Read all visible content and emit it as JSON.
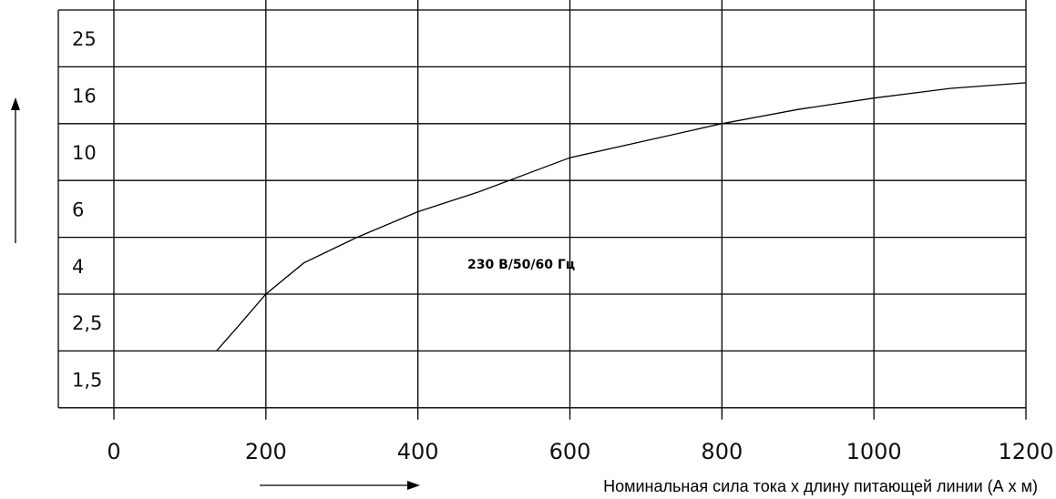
{
  "chart_data": {
    "type": "line",
    "title": "",
    "xlabel": "Номинальная сила тока x длину питающей линии (А x м)",
    "ylabel": "",
    "xlim": [
      0,
      1200
    ],
    "x_ticks": [
      "0",
      "200",
      "400",
      "600",
      "800",
      "1000",
      "1200"
    ],
    "y_categories": [
      "1,5",
      "2,5",
      "4",
      "6",
      "10",
      "16",
      "25"
    ],
    "grid": true,
    "annotation": "230 В/50/60 Гц",
    "series": [
      {
        "name": "",
        "points": [
          {
            "x": 135,
            "y": 1.0
          },
          {
            "x": 160,
            "y": 1.38
          },
          {
            "x": 200,
            "y": 2.0
          },
          {
            "x": 250,
            "y": 2.55
          },
          {
            "x": 320,
            "y": 3.0
          },
          {
            "x": 400,
            "y": 3.45
          },
          {
            "x": 480,
            "y": 3.8
          },
          {
            "x": 560,
            "y": 4.2
          },
          {
            "x": 600,
            "y": 4.4
          },
          {
            "x": 700,
            "y": 4.7
          },
          {
            "x": 800,
            "y": 5.0
          },
          {
            "x": 900,
            "y": 5.25
          },
          {
            "x": 1000,
            "y": 5.45
          },
          {
            "x": 1100,
            "y": 5.62
          },
          {
            "x": 1200,
            "y": 5.72
          }
        ]
      }
    ]
  }
}
